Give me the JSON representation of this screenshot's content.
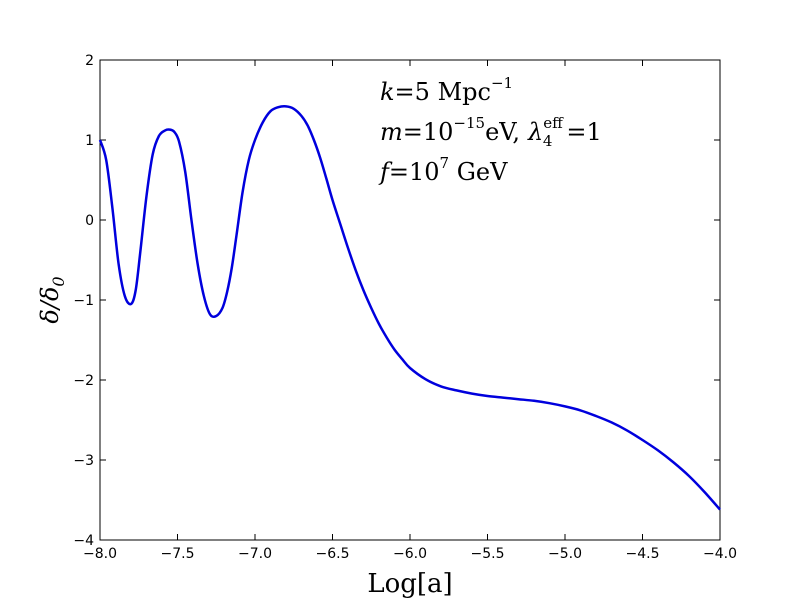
{
  "chart_data": {
    "type": "line",
    "title": "",
    "xlabel": "Log[a]",
    "ylabel": {
      "base": "δ/δ",
      "sub": "0"
    },
    "xlim": [
      -8.0,
      -4.0
    ],
    "ylim": [
      -4,
      2
    ],
    "xticks": [
      "−8.0",
      "−7.5",
      "−7.0",
      "−6.5",
      "−6.0",
      "−5.5",
      "−5.0",
      "−4.5",
      "−4.0"
    ],
    "yticks": [
      "−4",
      "−3",
      "−2",
      "−1",
      "0",
      "1",
      "2"
    ],
    "grid": false,
    "line_color": "#0000dd",
    "annotations": {
      "line1": {
        "var": "k",
        "eq": "=5",
        "unit": " Mpc",
        "exp": "−1"
      },
      "line2": {
        "var": "m",
        "eq": "=10",
        "exp": "−15",
        "unit": "eV,",
        "var2": "λ",
        "sup2": "eff",
        "sub2": "4",
        "eq2": "=1"
      },
      "line3": {
        "var": "f",
        "eq": "=10",
        "exp": "7",
        "unit": " GeV"
      }
    },
    "series": [
      {
        "x": [
          -8.0,
          -7.96,
          -7.92,
          -7.88,
          -7.84,
          -7.8,
          -7.77,
          -7.74,
          -7.7,
          -7.66,
          -7.62,
          -7.58,
          -7.55,
          -7.52,
          -7.49,
          -7.45,
          -7.41,
          -7.37,
          -7.33,
          -7.29,
          -7.25,
          -7.21,
          -7.18,
          -7.15,
          -7.12,
          -7.08,
          -7.04,
          -7.0,
          -6.95,
          -6.9,
          -6.85,
          -6.8,
          -6.75,
          -6.7,
          -6.66,
          -6.62,
          -6.58,
          -6.54,
          -6.5,
          -6.45,
          -6.4,
          -6.35,
          -6.3,
          -6.25,
          -6.2,
          -6.15,
          -6.1,
          -6.05,
          -6.0,
          -5.9,
          -5.8,
          -5.7,
          -5.6,
          -5.5,
          -5.4,
          -5.3,
          -5.2,
          -5.1,
          -5.0,
          -4.9,
          -4.8,
          -4.7,
          -4.6,
          -4.5,
          -4.4,
          -4.3,
          -4.2,
          -4.1,
          -4.0
        ],
        "y": [
          1.0,
          0.75,
          0.15,
          -0.55,
          -0.95,
          -1.05,
          -0.88,
          -0.4,
          0.3,
          0.82,
          1.05,
          1.12,
          1.13,
          1.1,
          0.98,
          0.6,
          0.0,
          -0.55,
          -0.95,
          -1.18,
          -1.2,
          -1.1,
          -0.9,
          -0.6,
          -0.2,
          0.35,
          0.75,
          1.0,
          1.22,
          1.36,
          1.41,
          1.42,
          1.39,
          1.3,
          1.18,
          1.0,
          0.78,
          0.52,
          0.25,
          -0.05,
          -0.35,
          -0.63,
          -0.88,
          -1.1,
          -1.3,
          -1.47,
          -1.62,
          -1.74,
          -1.85,
          -1.99,
          -2.08,
          -2.13,
          -2.17,
          -2.2,
          -2.22,
          -2.24,
          -2.26,
          -2.29,
          -2.33,
          -2.38,
          -2.45,
          -2.53,
          -2.63,
          -2.75,
          -2.88,
          -3.03,
          -3.2,
          -3.4,
          -3.62
        ]
      }
    ]
  }
}
